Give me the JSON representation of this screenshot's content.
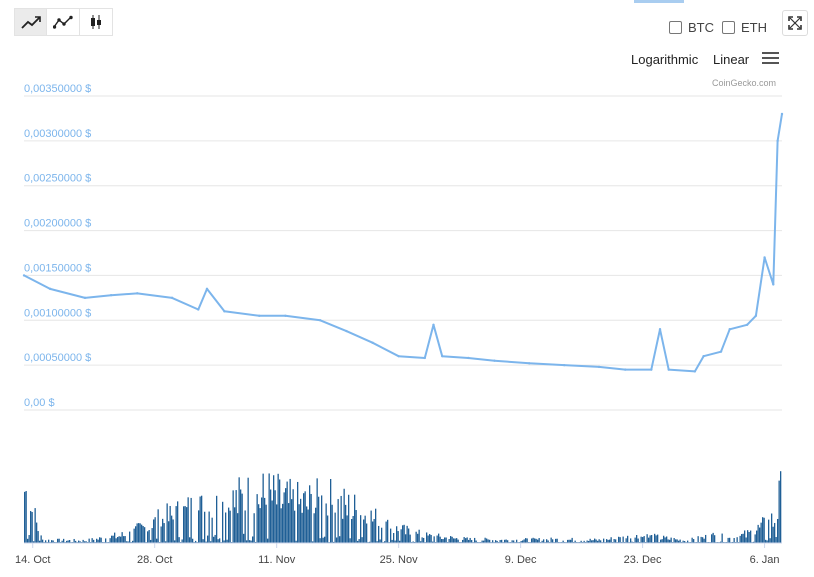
{
  "toolbar": {
    "buttons": [
      {
        "icon": "line-chart-icon",
        "active": true
      },
      {
        "icon": "dotted-line-chart-icon",
        "active": false
      },
      {
        "icon": "candlestick-icon",
        "active": false
      }
    ]
  },
  "compare": {
    "btc_label": "BTC",
    "eth_label": "ETH"
  },
  "scale": {
    "logarithmic_label": "Logarithmic",
    "linear_label": "Linear"
  },
  "credit": "CoinGecko.com",
  "icons": {
    "expand": "expand-icon",
    "menu": "hamburger-menu-icon"
  },
  "colors": {
    "price_line": "#7cb5ec",
    "volume_bars": "#1f5f96",
    "grid": "#e6e6e6"
  },
  "chart_data": {
    "type": "line",
    "x_axis": {
      "start": "2017-10-13",
      "end": "2018-01-08",
      "tick_labels": [
        "14. Oct",
        "28. Oct",
        "11. Nov",
        "25. Nov",
        "9. Dec",
        "23. Dec",
        "6. Jan"
      ],
      "tick_dates": [
        "2017-10-14",
        "2017-10-28",
        "2017-11-11",
        "2017-11-25",
        "2017-12-09",
        "2017-12-23",
        "2018-01-06"
      ]
    },
    "y_axis": {
      "ylim": [
        0,
        0.0035
      ],
      "tick_values": [
        0,
        0.0005,
        0.001,
        0.0015,
        0.002,
        0.0025,
        0.003,
        0.0035
      ],
      "tick_labels": [
        "0,00 $",
        "0,00050000 $",
        "0,00100000 $",
        "0,00150000 $",
        "0,00200000 $",
        "0,00250000 $",
        "0,00300000 $",
        "0,00350000 $"
      ]
    },
    "grid": true,
    "series": [
      {
        "x": [
          "2017-10-13",
          "2017-10-16",
          "2017-10-20",
          "2017-10-23",
          "2017-10-26",
          "2017-10-30",
          "2017-11-02",
          "2017-11-03",
          "2017-11-05",
          "2017-11-09",
          "2017-11-12",
          "2017-11-16",
          "2017-11-19",
          "2017-11-22",
          "2017-11-25",
          "2017-11-28",
          "2017-11-29",
          "2017-11-30",
          "2017-12-03",
          "2017-12-06",
          "2017-12-10",
          "2017-12-14",
          "2017-12-18",
          "2017-12-21",
          "2017-12-24",
          "2017-12-25",
          "2017-12-26",
          "2017-12-29",
          "2017-12-30",
          "2018-01-01",
          "2018-01-02",
          "2018-01-04",
          "2018-01-05",
          "2018-01-06",
          "2018-01-07",
          "2018-01-07T12:00",
          "2018-01-08"
        ],
        "y": [
          0.0015,
          0.00135,
          0.00125,
          0.00128,
          0.0013,
          0.00125,
          0.00112,
          0.00135,
          0.0011,
          0.00105,
          0.00105,
          0.001,
          0.00088,
          0.00075,
          0.0006,
          0.00058,
          0.00095,
          0.0006,
          0.00058,
          0.00055,
          0.00052,
          0.0005,
          0.00048,
          0.00045,
          0.00045,
          0.0009,
          0.00045,
          0.00043,
          0.0006,
          0.00065,
          0.0009,
          0.00095,
          0.00105,
          0.0017,
          0.0014,
          0.003,
          0.0033
        ]
      }
    ],
    "volume": {
      "x": [
        "2017-10-13",
        "2017-10-15",
        "2017-10-20",
        "2017-10-25",
        "2017-10-28",
        "2017-11-01",
        "2017-11-04",
        "2017-11-07",
        "2017-11-10",
        "2017-11-13",
        "2017-11-17",
        "2017-11-21",
        "2017-11-24",
        "2017-11-28",
        "2017-12-03",
        "2017-12-08",
        "2017-12-13",
        "2017-12-18",
        "2017-12-23",
        "2017-12-28",
        "2017-12-31",
        "2018-01-02",
        "2018-01-04",
        "2018-01-06",
        "2018-01-07",
        "2018-01-08"
      ],
      "relative_height": [
        0.95,
        0.05,
        0.04,
        0.15,
        0.35,
        0.55,
        0.6,
        0.75,
        0.8,
        0.65,
        0.7,
        0.5,
        0.25,
        0.12,
        0.06,
        0.05,
        0.06,
        0.05,
        0.12,
        0.04,
        0.12,
        0.08,
        0.15,
        0.3,
        0.4,
        0.9
      ]
    }
  }
}
